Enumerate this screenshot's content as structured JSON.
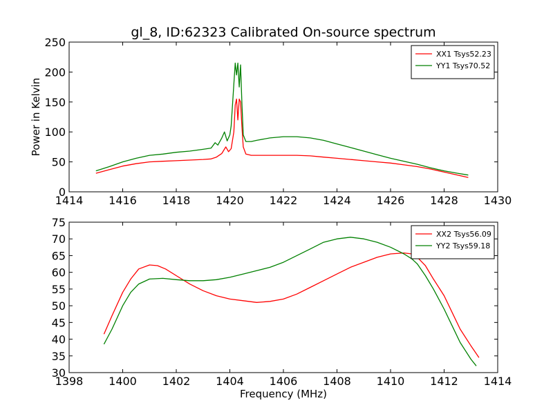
{
  "figure": {
    "title": "gl_8, ID:62323 Calibrated On-source spectrum"
  },
  "colors": {
    "red": "#ff0000",
    "green": "#008000"
  },
  "chart_data": [
    {
      "type": "line",
      "title": "gl_8, ID:62323 Calibrated On-source spectrum",
      "xlabel": "",
      "ylabel": "Power in Kelvin",
      "xlim": [
        1414,
        1430
      ],
      "ylim": [
        0,
        250
      ],
      "xticks": [
        1414,
        1416,
        1418,
        1420,
        1422,
        1424,
        1426,
        1428,
        1430
      ],
      "yticks": [
        0,
        50,
        100,
        150,
        200,
        250
      ],
      "grid": false,
      "legend": "top-right",
      "series": [
        {
          "name": "XX1 Tsys52.23",
          "color": "#ff0000",
          "x": [
            1415.0,
            1415.5,
            1416.0,
            1416.5,
            1417.0,
            1417.5,
            1418.0,
            1418.5,
            1419.0,
            1419.3,
            1419.5,
            1419.7,
            1419.85,
            1419.95,
            1420.05,
            1420.15,
            1420.2,
            1420.25,
            1420.3,
            1420.35,
            1420.4,
            1420.45,
            1420.5,
            1420.6,
            1420.8,
            1421.0,
            1421.5,
            1422.0,
            1422.5,
            1423.0,
            1423.5,
            1424.0,
            1424.5,
            1425.0,
            1425.5,
            1426.0,
            1426.5,
            1427.0,
            1427.5,
            1428.0,
            1428.5,
            1428.9
          ],
          "y": [
            31,
            37,
            43,
            47,
            50,
            51,
            52,
            53,
            54,
            55,
            58,
            64,
            75,
            67,
            72,
            100,
            145,
            155,
            120,
            155,
            150,
            110,
            75,
            63,
            61,
            61,
            61,
            61,
            61,
            60,
            58,
            56,
            54,
            52,
            50,
            48,
            45,
            42,
            38,
            33,
            28,
            24
          ]
        },
        {
          "name": "YY1 Tsys70.52",
          "color": "#008000",
          "x": [
            1415.0,
            1415.5,
            1416.0,
            1416.5,
            1417.0,
            1417.5,
            1418.0,
            1418.5,
            1419.0,
            1419.3,
            1419.45,
            1419.55,
            1419.7,
            1419.8,
            1419.9,
            1420.0,
            1420.05,
            1420.15,
            1420.2,
            1420.25,
            1420.3,
            1420.35,
            1420.4,
            1420.45,
            1420.5,
            1420.6,
            1420.8,
            1421.0,
            1421.5,
            1422.0,
            1422.5,
            1423.0,
            1423.5,
            1424.0,
            1424.5,
            1425.0,
            1425.5,
            1426.0,
            1426.5,
            1427.0,
            1427.5,
            1428.0,
            1428.5,
            1428.9
          ],
          "y": [
            35,
            42,
            50,
            56,
            61,
            63,
            66,
            68,
            71,
            73,
            82,
            78,
            90,
            100,
            85,
            95,
            110,
            180,
            215,
            195,
            215,
            175,
            212,
            150,
            95,
            84,
            84,
            86,
            90,
            92,
            92,
            90,
            86,
            80,
            74,
            68,
            62,
            56,
            51,
            46,
            40,
            35,
            31,
            28
          ]
        }
      ]
    },
    {
      "type": "line",
      "title": "",
      "xlabel": "Frequency (MHz)",
      "ylabel": "",
      "xlim": [
        1398,
        1414
      ],
      "ylim": [
        30,
        75
      ],
      "xticks": [
        1398,
        1400,
        1402,
        1404,
        1406,
        1408,
        1410,
        1412,
        1414
      ],
      "yticks": [
        30,
        35,
        40,
        45,
        50,
        55,
        60,
        65,
        70,
        75
      ],
      "grid": false,
      "legend": "top-right",
      "series": [
        {
          "name": "XX2 Tsys56.09",
          "color": "#ff0000",
          "x": [
            1399.3,
            1399.6,
            1400.0,
            1400.3,
            1400.6,
            1401.0,
            1401.3,
            1401.6,
            1402.0,
            1402.5,
            1403.0,
            1403.5,
            1404.0,
            1404.5,
            1405.0,
            1405.5,
            1406.0,
            1406.5,
            1407.0,
            1407.5,
            1408.0,
            1408.5,
            1409.0,
            1409.5,
            1410.0,
            1410.5,
            1410.8,
            1411.0,
            1411.3,
            1411.6,
            1412.0,
            1412.3,
            1412.6,
            1413.0,
            1413.3
          ],
          "y": [
            41.5,
            47,
            54,
            58,
            61,
            62.2,
            62,
            61,
            59,
            56.5,
            54.5,
            53,
            52,
            51.5,
            51,
            51.3,
            52,
            53.5,
            55.5,
            57.5,
            59.5,
            61.5,
            63,
            64.5,
            65.5,
            65.8,
            65.5,
            64.5,
            62,
            58,
            53,
            48,
            43,
            38,
            34.5
          ]
        },
        {
          "name": "YY2 Tsys59.18",
          "color": "#008000",
          "x": [
            1399.3,
            1399.6,
            1400.0,
            1400.3,
            1400.6,
            1401.0,
            1401.5,
            1402.0,
            1402.5,
            1403.0,
            1403.5,
            1404.0,
            1404.5,
            1405.0,
            1405.5,
            1406.0,
            1406.5,
            1407.0,
            1407.5,
            1408.0,
            1408.5,
            1409.0,
            1409.5,
            1410.0,
            1410.5,
            1410.8,
            1411.0,
            1411.3,
            1411.6,
            1412.0,
            1412.3,
            1412.6,
            1413.0,
            1413.2
          ],
          "y": [
            38.5,
            43,
            50,
            54,
            56.5,
            58,
            58.2,
            57.8,
            57.5,
            57.5,
            57.8,
            58.5,
            59.5,
            60.5,
            61.5,
            63,
            65,
            67,
            69,
            70,
            70.5,
            70,
            69,
            67.5,
            65.5,
            64,
            62.5,
            59,
            55,
            49,
            44,
            39,
            34,
            32
          ]
        }
      ]
    }
  ]
}
